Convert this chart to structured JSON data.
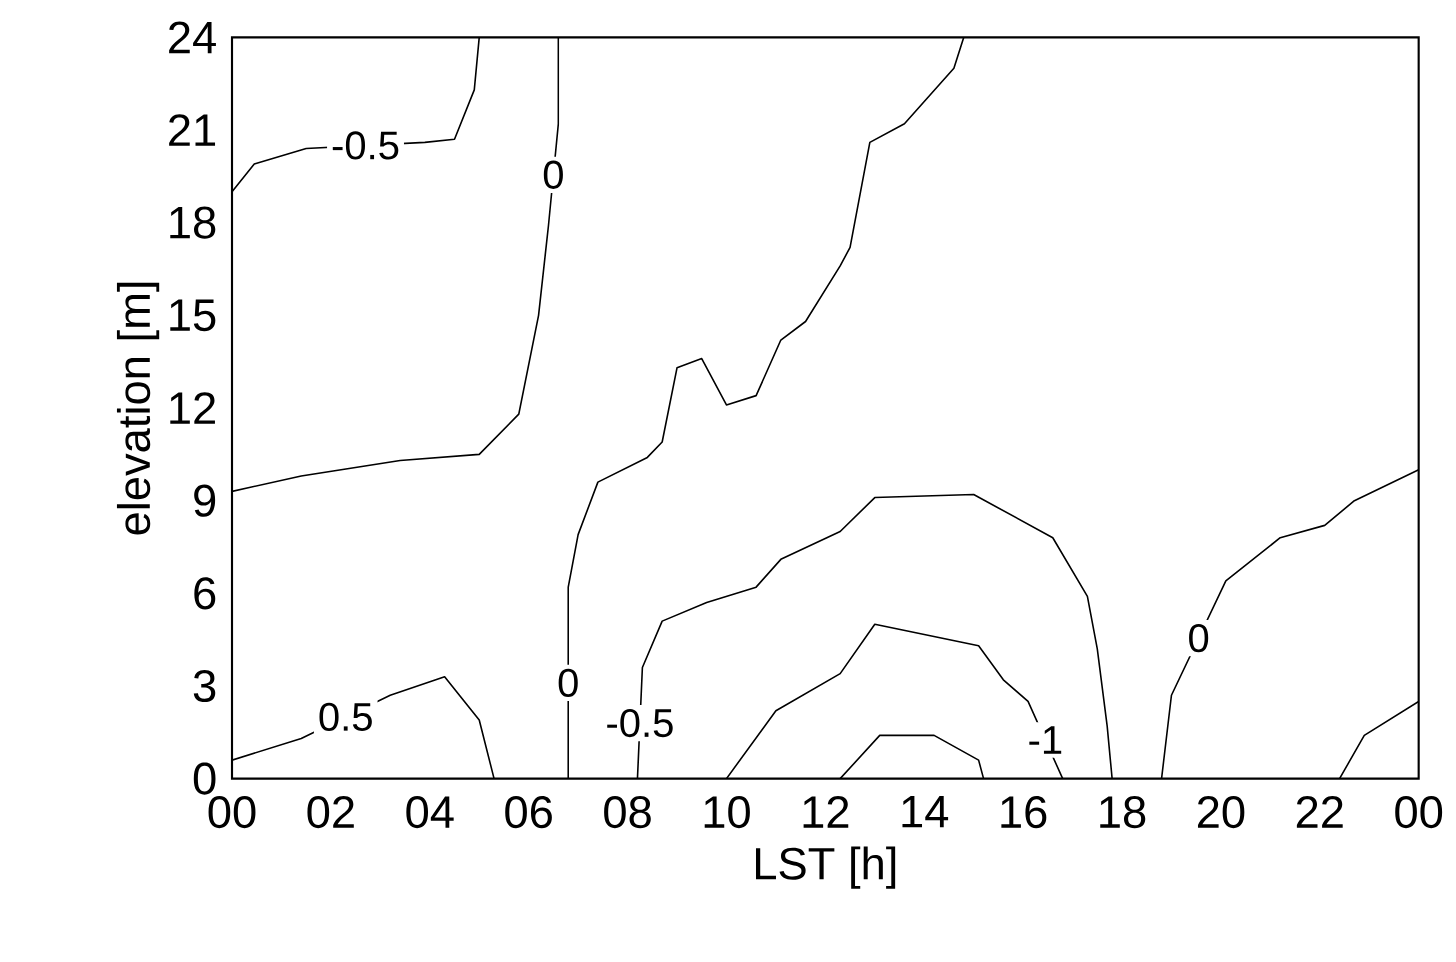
{
  "chart_data": {
    "type": "line",
    "xlabel": "LST [h]",
    "ylabel": "elevation [m]",
    "xlim": [
      0,
      24
    ],
    "ylim": [
      0,
      24
    ],
    "xticks": [
      {
        "value": 0,
        "label": "00"
      },
      {
        "value": 2,
        "label": "02"
      },
      {
        "value": 4,
        "label": "04"
      },
      {
        "value": 6,
        "label": "06"
      },
      {
        "value": 8,
        "label": "08"
      },
      {
        "value": 10,
        "label": "10"
      },
      {
        "value": 12,
        "label": "12"
      },
      {
        "value": 14,
        "label": "14"
      },
      {
        "value": 16,
        "label": "16"
      },
      {
        "value": 18,
        "label": "18"
      },
      {
        "value": 20,
        "label": "20"
      },
      {
        "value": 22,
        "label": "22"
      },
      {
        "value": 24,
        "label": "00"
      }
    ],
    "yticks": [
      0,
      3,
      6,
      9,
      12,
      15,
      18,
      21,
      24
    ],
    "series": [
      {
        "name": "-0.5",
        "color": "#000000",
        "x": [
          0,
          0.45,
          1.5,
          3.9,
          4.5,
          4.9,
          5.0
        ],
        "values": [
          19.0,
          19.9,
          20.4,
          20.6,
          20.7,
          22.3,
          24
        ]
      },
      {
        "name": "0",
        "color": "#000000",
        "x": [
          0,
          1.4,
          3.4,
          5.0,
          5.8,
          6.2,
          6.4,
          6.6,
          6.6
        ],
        "values": [
          9.3,
          9.8,
          10.3,
          10.5,
          11.8,
          15.0,
          17.9,
          21.2,
          24
        ]
      },
      {
        "name": "0.5",
        "color": "#000000",
        "x": [
          0,
          1.4,
          3.2,
          4.3,
          5.0,
          5.3
        ],
        "values": [
          0.6,
          1.3,
          2.7,
          3.3,
          1.9,
          0
        ]
      },
      {
        "name": "0",
        "color": "#000000",
        "x": [
          6.8,
          6.8,
          7.0,
          7.4,
          8.4,
          8.7,
          9.0,
          9.5,
          10.0,
          10.6,
          11.1,
          11.6,
          12.3,
          12.5,
          12.9,
          13.6,
          14.6,
          14.8
        ],
        "values": [
          0,
          6.2,
          7.9,
          9.6,
          10.4,
          10.9,
          13.3,
          13.6,
          12.1,
          12.4,
          14.2,
          14.8,
          16.6,
          17.2,
          20.6,
          21.2,
          23.0,
          24
        ]
      },
      {
        "name": "-0.5",
        "color": "#000000",
        "x": [
          8.2,
          8.3,
          8.7,
          9.6,
          10.6,
          11.1,
          12.3,
          13.0,
          15.0,
          16.6,
          17.3,
          17.5,
          17.7,
          17.8
        ],
        "values": [
          0,
          3.6,
          5.1,
          5.7,
          6.2,
          7.1,
          8.0,
          9.1,
          9.2,
          7.8,
          5.9,
          4.2,
          1.7,
          0
        ]
      },
      {
        "name": "-1",
        "color": "#000000",
        "x": [
          10.0,
          11.0,
          12.3,
          13.0,
          15.1,
          15.6,
          16.1,
          16.8
        ],
        "values": [
          0,
          2.2,
          3.4,
          5.0,
          4.3,
          3.2,
          2.5,
          0
        ]
      },
      {
        "color": "#000000",
        "x": [
          12.3,
          13.1,
          14.2,
          15.1,
          15.2
        ],
        "values": [
          0,
          1.4,
          1.4,
          0.6,
          0
        ]
      },
      {
        "name": "0",
        "color": "#000000",
        "x": [
          18.8,
          19.0,
          20.1,
          21.2,
          22.1,
          22.7,
          24
        ],
        "values": [
          0,
          2.7,
          6.4,
          7.8,
          8.2,
          9.0,
          10.0
        ]
      },
      {
        "color": "#000000",
        "x": [
          22.4,
          22.9,
          24
        ],
        "values": [
          0,
          1.4,
          2.5
        ]
      }
    ]
  }
}
